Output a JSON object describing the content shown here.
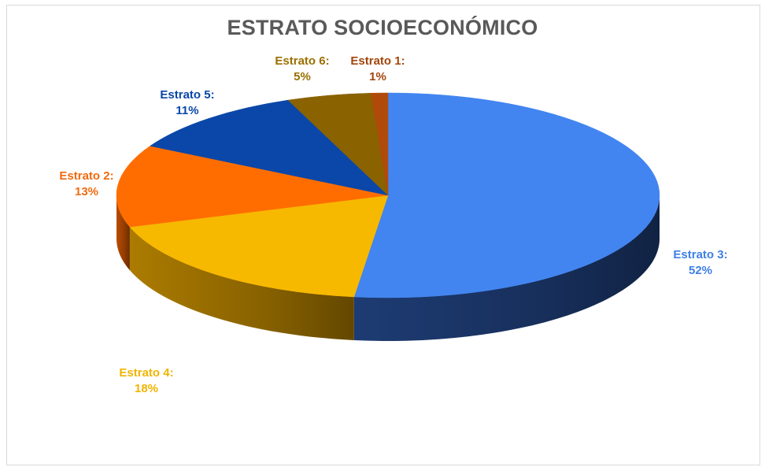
{
  "chart_data": {
    "type": "pie",
    "title": "ESTRATO SOCIOECONÓMICO",
    "slices": [
      {
        "label": "Estrato 3:",
        "pct_label": "52%",
        "value": 52,
        "color": "#4285f0",
        "side_color": "#1f3f7a",
        "label_color": "#3f7fe6"
      },
      {
        "label": "Estrato 4:",
        "pct_label": "18%",
        "value": 18,
        "color": "#f7b800",
        "side_color": "#b58200",
        "label_color": "#f0b400"
      },
      {
        "label": "Estrato 2:",
        "pct_label": "13%",
        "value": 13,
        "color": "#ff6d00",
        "side_color": "#c25000",
        "label_color": "#f06a10"
      },
      {
        "label": "Estrato 5:",
        "pct_label": "11%",
        "value": 11,
        "color": "#0a47a8",
        "side_color": "#06306f",
        "label_color": "#0a47a8"
      },
      {
        "label": "Estrato 6:",
        "pct_label": "5%",
        "value": 5,
        "color": "#8a6200",
        "side_color": "#5c4100",
        "label_color": "#9a7000"
      },
      {
        "label": "Estrato 1:",
        "pct_label": "1%",
        "value": 1,
        "color": "#b04a0a",
        "side_color": "#7a3206",
        "label_color": "#a3460c"
      }
    ]
  }
}
